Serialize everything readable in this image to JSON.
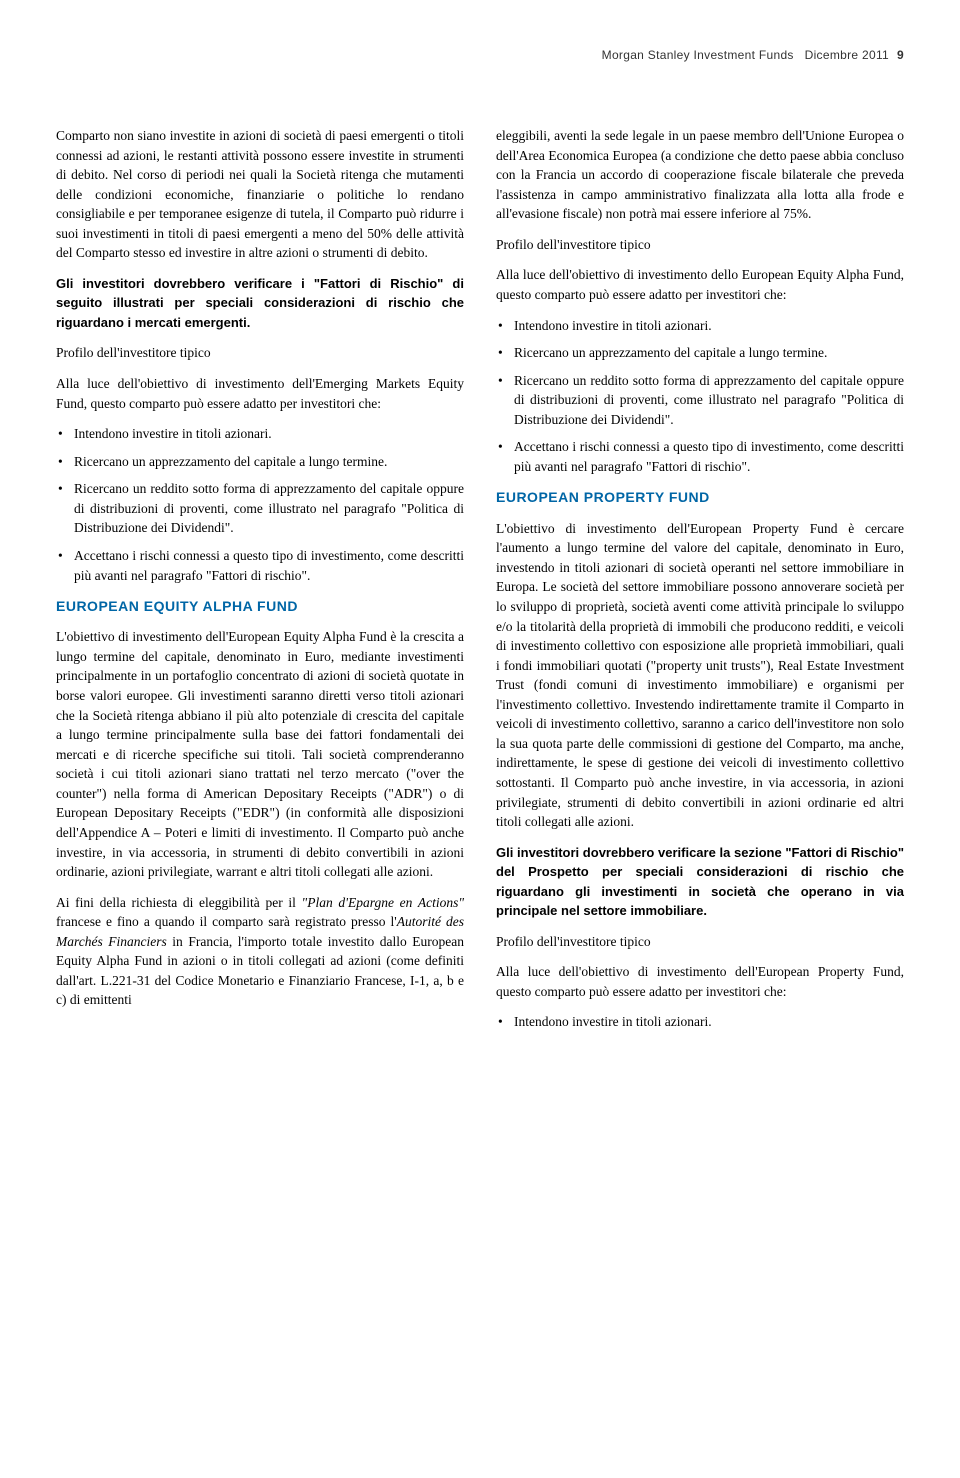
{
  "header": {
    "left": "Morgan Stanley Investment Funds",
    "center": "Dicembre 2011",
    "page": "9"
  },
  "col1": {
    "p1": "Comparto non siano investite in azioni di società di paesi emergenti o titoli connessi ad azioni, le restanti attività possono essere investite in strumenti di debito. Nel corso di periodi nei quali la Società ritenga che mutamenti delle condizioni economiche, finanziarie o politiche lo rendano consigliabile e per temporanee esigenze di tutela, il Comparto può ridurre i suoi investimenti in titoli di paesi emergenti a meno del 50% delle attività del Comparto stesso ed investire in altre azioni o strumenti di debito.",
    "notice1": "Gli investitori dovrebbero verificare i \"Fattori di Rischio\" di seguito illustrati per speciali considerazioni di rischio che riguardano i mercati emergenti.",
    "sub1": "Profilo dell'investitore tipico",
    "p2": "Alla luce dell'obiettivo di investimento dell'Emerging Markets Equity Fund, questo comparto può essere adatto per investitori che:",
    "bullets1": [
      "Intendono investire in titoli azionari.",
      "Ricercano un apprezzamento del capitale a lungo termine.",
      "Ricercano un reddito sotto forma di apprezzamento del capitale oppure di distribuzioni di proventi, come illustrato nel paragrafo \"Politica di Distribuzione dei Dividendi\".",
      "Accettano i rischi connessi a questo tipo di investimento, come descritti più avanti nel paragrafo \"Fattori di rischio\"."
    ],
    "fund1": "EUROPEAN EQUITY ALPHA FUND",
    "p3": "L'obiettivo di investimento dell'European Equity Alpha Fund è la crescita a lungo termine del capitale, denominato in Euro, mediante investimenti principalmente in un portafoglio concentrato di azioni di società quotate in borse valori europee. Gli investimenti saranno diretti verso titoli azionari che la Società ritenga abbiano il più alto potenziale di crescita del capitale a lungo termine principalmente sulla base dei fattori fondamentali dei mercati e di ricerche specifiche sui titoli. Tali società comprenderanno società i cui titoli azionari siano trattati nel terzo mercato (\"over the counter\") nella forma di American Depositary Receipts (\"ADR\") o di European Depositary Receipts (\"EDR\") (in conformità alle disposizioni dell'Appendice A – Poteri e limiti di investimento. Il Comparto può anche investire, in via accessoria, in strumenti di debito convertibili in azioni ordinarie, azioni privilegiate, warrant e altri titoli collegati alle azioni.",
    "p4a": "Ai fini della richiesta di eleggibilità per il ",
    "p4b": "\"Plan d'Epargne en Actions\"",
    "p4c": " francese e fino a quando il comparto sarà registrato presso l'",
    "p4d": "Autorité des Marchés Financiers",
    "p4e": " in Francia, l'importo totale investito dallo European Equity Alpha Fund in azioni o in titoli collegati ad azioni (come definiti dall'art. L.221-31 del Codice Monetario e Finanziario Francese, I-1, a, b e c) di emittenti"
  },
  "col2": {
    "p1": "eleggibili, aventi la sede legale in un paese membro dell'Unione Europea o dell'Area Economica Europea (a condizione che detto paese abbia concluso con la Francia un accordo di cooperazione fiscale bilaterale che preveda l'assistenza in campo amministrativo finalizzata alla lotta alla frode e all'evasione fiscale) non potrà mai essere inferiore al 75%.",
    "sub1": "Profilo dell'investitore tipico",
    "p2": "Alla luce dell'obiettivo di investimento dello European Equity Alpha Fund, questo comparto può essere adatto per investitori che:",
    "bullets1": [
      "Intendono investire in titoli azionari.",
      "Ricercano un apprezzamento del capitale a lungo termine.",
      "Ricercano un reddito sotto forma di apprezzamento del capitale oppure di distribuzioni di proventi, come illustrato nel paragrafo \"Politica di Distribuzione dei Dividendi\".",
      "Accettano i rischi connessi a questo tipo di investimento, come descritti più avanti nel paragrafo \"Fattori di rischio\"."
    ],
    "fund1": "EUROPEAN PROPERTY FUND",
    "p3": "L'obiettivo di investimento dell'European Property Fund è cercare l'aumento a lungo termine del valore del capitale, denominato in Euro, investendo in titoli azionari di società operanti nel settore immobiliare in Europa. Le società del settore immobiliare possono annoverare società per lo sviluppo di proprietà, società aventi come attività principale lo sviluppo e/o la titolarità della proprietà di immobili che producono redditi, e veicoli di investimento collettivo con esposizione alle proprietà immobiliari, quali i fondi immobiliari quotati (\"property unit trusts\"), Real Estate Investment Trust (fondi comuni di investimento immobiliare) e organismi per l'investimento collettivo. Investendo indirettamente tramite il Comparto in veicoli di investimento collettivo, saranno a carico dell'investitore non solo la sua quota parte delle commissioni di gestione del Comparto, ma anche, indirettamente, le spese di gestione dei veicoli di investimento collettivo sottostanti. Il Comparto può anche investire, in via accessoria, in azioni privilegiate, strumenti di debito convertibili in azioni ordinarie ed altri titoli collegati alle azioni.",
    "notice1": "Gli investitori dovrebbero verificare la sezione \"Fattori di Rischio\" del Prospetto per speciali considerazioni di rischio che riguardano gli investimenti in società che operano in via principale nel settore immobiliare.",
    "sub2": "Profilo dell'investitore tipico",
    "p4": "Alla luce dell'obiettivo di investimento dell'European Property Fund, questo comparto può essere adatto per investitori che:",
    "bullets2": [
      "Intendono investire in titoli azionari."
    ]
  }
}
